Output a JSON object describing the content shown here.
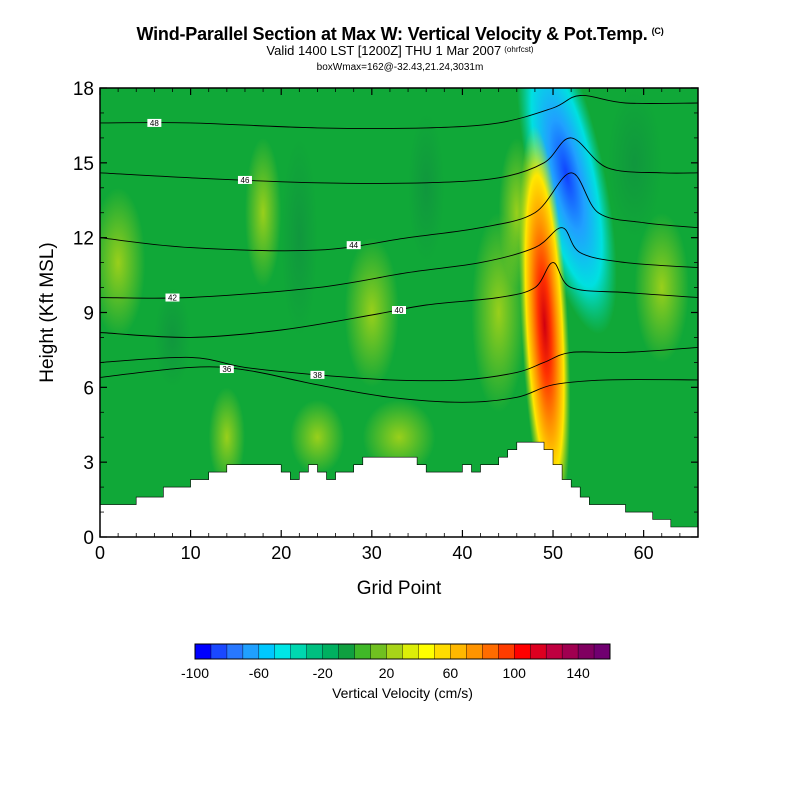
{
  "header": {
    "title": "Wind-Parallel Section at Max W: Vertical Velocity & Pot.Temp.",
    "title_tag": "(C)",
    "subtitle": "Valid 1400 LST [1200Z] THU 1 Mar 2007",
    "subtitle_tag": "(ohrfcst)",
    "info": "boxWmax=162@-32.43,21.24,3031m"
  },
  "chart_data": {
    "type": "heatmap",
    "xlabel": "Grid Point",
    "ylabel": "Height (Kft MSL)",
    "xlim": [
      0,
      66
    ],
    "ylim": [
      0,
      18
    ],
    "xticks": [
      0,
      10,
      20,
      30,
      40,
      50,
      60
    ],
    "yticks": [
      0,
      3,
      6,
      9,
      12,
      15,
      18
    ],
    "grid": false,
    "colorbar": {
      "label": "Vertical Velocity (cm/s)",
      "ticks": [
        -100,
        -60,
        -20,
        20,
        60,
        100,
        140
      ],
      "min": -100,
      "max": 160,
      "step": 10,
      "colors": [
        "#0000ff",
        "#1a48ff",
        "#2878ff",
        "#20a0ff",
        "#00c8ff",
        "#00e6e6",
        "#00d8b0",
        "#00c080",
        "#00b060",
        "#10a040",
        "#40b828",
        "#70c020",
        "#a8d418",
        "#dcee08",
        "#ffff00",
        "#ffdc00",
        "#ffb800",
        "#ff9400",
        "#ff6c00",
        "#ff3c00",
        "#ff0000",
        "#dd0020",
        "#c00040",
        "#a00050",
        "#800060",
        "#700070"
      ]
    },
    "terrain_kft": [
      [
        0,
        1.3
      ],
      [
        4,
        1.3
      ],
      [
        4,
        1.6
      ],
      [
        7,
        1.6
      ],
      [
        7,
        2.0
      ],
      [
        10,
        2.0
      ],
      [
        10,
        2.3
      ],
      [
        12,
        2.3
      ],
      [
        12,
        2.6
      ],
      [
        14,
        2.6
      ],
      [
        14,
        2.9
      ],
      [
        20,
        2.9
      ],
      [
        20,
        2.6
      ],
      [
        21,
        2.6
      ],
      [
        21,
        2.3
      ],
      [
        22,
        2.3
      ],
      [
        22,
        2.6
      ],
      [
        23,
        2.6
      ],
      [
        23,
        2.9
      ],
      [
        24,
        2.9
      ],
      [
        24,
        2.6
      ],
      [
        25,
        2.6
      ],
      [
        25,
        2.3
      ],
      [
        26,
        2.3
      ],
      [
        26,
        2.6
      ],
      [
        28,
        2.6
      ],
      [
        28,
        2.9
      ],
      [
        29,
        2.9
      ],
      [
        29,
        3.2
      ],
      [
        35,
        3.2
      ],
      [
        35,
        2.9
      ],
      [
        36,
        2.9
      ],
      [
        36,
        2.6
      ],
      [
        40,
        2.6
      ],
      [
        40,
        2.9
      ],
      [
        41,
        2.9
      ],
      [
        41,
        2.6
      ],
      [
        42,
        2.6
      ],
      [
        42,
        2.9
      ],
      [
        44,
        2.9
      ],
      [
        44,
        3.2
      ],
      [
        45,
        3.2
      ],
      [
        45,
        3.5
      ],
      [
        46,
        3.5
      ],
      [
        46,
        3.8
      ],
      [
        49,
        3.8
      ],
      [
        49,
        3.5
      ],
      [
        50,
        3.5
      ],
      [
        50,
        2.9
      ],
      [
        51,
        2.9
      ],
      [
        51,
        2.3
      ],
      [
        52,
        2.3
      ],
      [
        52,
        2.0
      ],
      [
        53,
        2.0
      ],
      [
        53,
        1.6
      ],
      [
        54,
        1.6
      ],
      [
        54,
        1.3
      ],
      [
        58,
        1.3
      ],
      [
        58,
        1.0
      ],
      [
        61,
        1.0
      ],
      [
        61,
        0.7
      ],
      [
        63,
        0.7
      ],
      [
        63,
        0.4
      ],
      [
        66,
        0.4
      ]
    ],
    "updraft_core": {
      "x": 49,
      "y": 9,
      "max": 162
    },
    "downdraft_core": {
      "x": 51.5,
      "y": 14.5,
      "min": -100
    },
    "isentropes": [
      {
        "label": "36",
        "pts": [
          [
            0,
            6.4
          ],
          [
            10,
            6.8
          ],
          [
            16,
            6.7
          ],
          [
            24,
            6.1
          ],
          [
            32,
            5.6
          ],
          [
            40,
            5.4
          ],
          [
            46,
            5.6
          ],
          [
            50,
            6.1
          ],
          [
            56,
            6.3
          ],
          [
            66,
            6.3
          ]
        ]
      },
      {
        "label": "38",
        "pts": [
          [
            0,
            7.0
          ],
          [
            10,
            7.2
          ],
          [
            16,
            6.8
          ],
          [
            24,
            6.5
          ],
          [
            32,
            6.3
          ],
          [
            40,
            6.3
          ],
          [
            46,
            6.6
          ],
          [
            49,
            7.0
          ],
          [
            52,
            7.4
          ],
          [
            58,
            7.4
          ],
          [
            66,
            7.6
          ]
        ]
      },
      {
        "label": "40",
        "pts": [
          [
            0,
            8.2
          ],
          [
            10,
            8.0
          ],
          [
            20,
            8.3
          ],
          [
            30,
            8.9
          ],
          [
            36,
            9.3
          ],
          [
            44,
            9.6
          ],
          [
            48,
            10.0
          ],
          [
            50,
            11.0
          ],
          [
            52,
            10.0
          ],
          [
            58,
            9.8
          ],
          [
            66,
            9.6
          ]
        ]
      },
      {
        "label": "42",
        "pts": [
          [
            0,
            9.6
          ],
          [
            10,
            9.6
          ],
          [
            24,
            10.0
          ],
          [
            34,
            10.6
          ],
          [
            42,
            11.0
          ],
          [
            48,
            11.6
          ],
          [
            51,
            12.4
          ],
          [
            53,
            11.4
          ],
          [
            58,
            11.0
          ],
          [
            66,
            10.8
          ]
        ]
      },
      {
        "label": "44",
        "pts": [
          [
            0,
            12.0
          ],
          [
            10,
            11.6
          ],
          [
            24,
            11.5
          ],
          [
            34,
            12.0
          ],
          [
            42,
            12.4
          ],
          [
            48,
            13.0
          ],
          [
            52,
            14.6
          ],
          [
            55,
            13.0
          ],
          [
            60,
            12.6
          ],
          [
            66,
            12.4
          ]
        ]
      },
      {
        "label": "46",
        "pts": [
          [
            0,
            14.6
          ],
          [
            10,
            14.4
          ],
          [
            24,
            14.2
          ],
          [
            36,
            14.2
          ],
          [
            44,
            14.4
          ],
          [
            49,
            15.0
          ],
          [
            52,
            16.0
          ],
          [
            56,
            14.8
          ],
          [
            62,
            14.6
          ],
          [
            66,
            14.6
          ]
        ]
      },
      {
        "label": "48",
        "pts": [
          [
            0,
            16.6
          ],
          [
            10,
            16.6
          ],
          [
            24,
            16.4
          ],
          [
            36,
            16.4
          ],
          [
            44,
            16.6
          ],
          [
            50,
            17.2
          ],
          [
            53,
            17.7
          ],
          [
            58,
            17.4
          ],
          [
            66,
            17.4
          ]
        ]
      }
    ]
  }
}
